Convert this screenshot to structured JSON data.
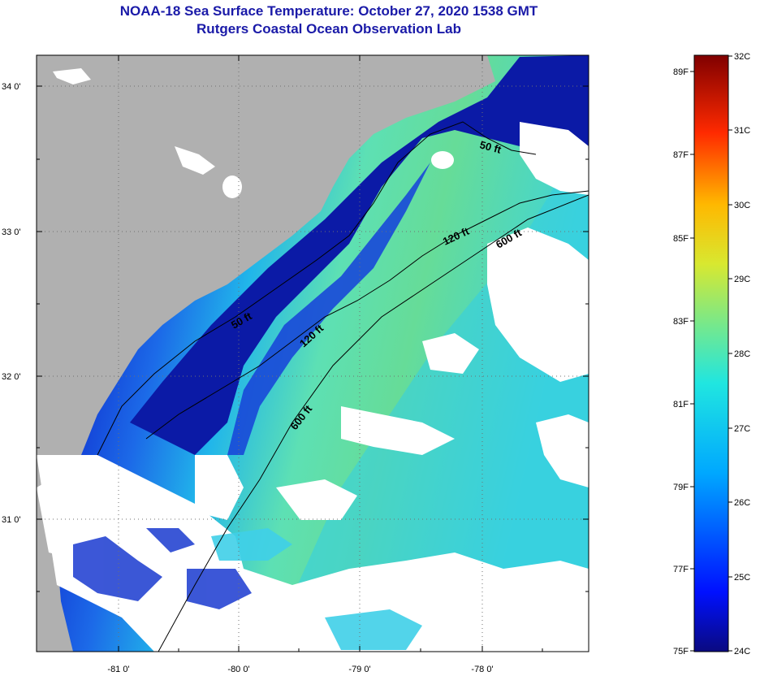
{
  "title": "NOAA-18 Sea Surface Temperature:  October 27, 2020 1538 GMT",
  "subtitle": "Rutgers Coastal Ocean Observation Lab",
  "lat_ticks": [
    "34 0'",
    "33 0'",
    "32 0'",
    "31 0'"
  ],
  "lon_ticks": [
    "-81 0'",
    "-80 0'",
    "-79 0'",
    "-78 0'"
  ],
  "contours": {
    "c50a": "50 ft",
    "c50b": "50 ft",
    "c120a": "120 ft",
    "c120b": "120 ft",
    "c600a": "600 ft",
    "c600b": "600 ft"
  },
  "colorbar": {
    "fahrenheit": [
      "89F",
      "87F",
      "85F",
      "83F",
      "81F",
      "79F",
      "77F",
      "75F"
    ],
    "celsius": [
      "32C",
      "31C",
      "30C",
      "29C",
      "28C",
      "27C",
      "26C",
      "25C",
      "24C"
    ]
  },
  "colors": {
    "land": "#b0b0b0",
    "cloud": "#ffffff",
    "deep_blue": "#0a1aa0",
    "title": "#1a1aa8"
  }
}
